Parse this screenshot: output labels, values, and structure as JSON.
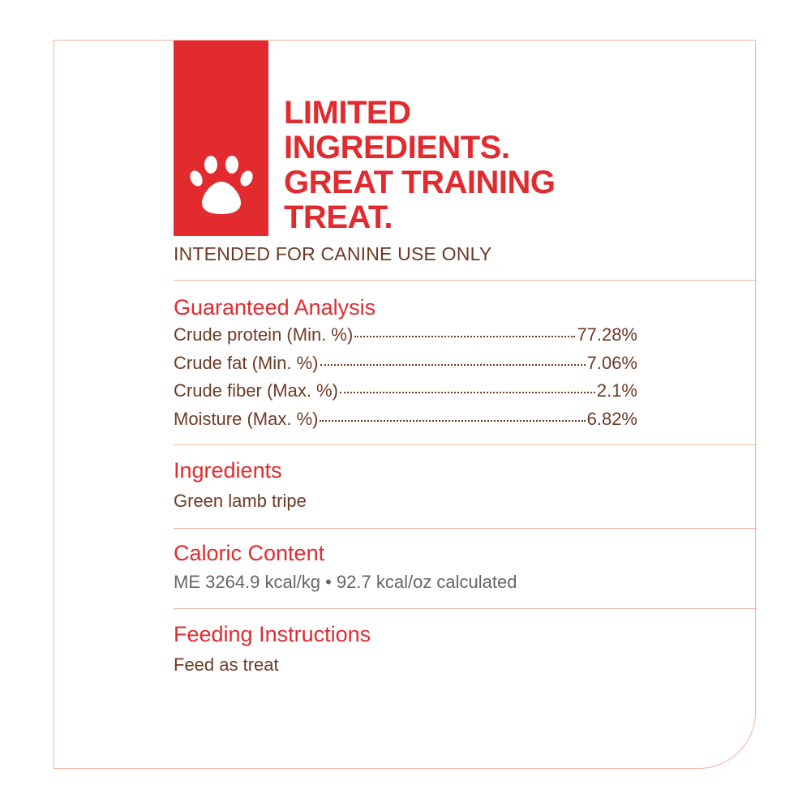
{
  "colors": {
    "accent": "#e12b2f",
    "text": "#6e3a24",
    "border": "#f4b49f",
    "muted": "#666666"
  },
  "badge": {
    "icon": "paw-icon"
  },
  "headline": [
    "LIMITED",
    "INGREDIENTS.",
    "GREAT TRAINING",
    "TREAT."
  ],
  "notice": "INTENDED FOR CANINE USE ONLY",
  "guaranteed_analysis": {
    "title": "Guaranteed Analysis",
    "rows": [
      {
        "label": "Crude protein (Min. %)",
        "value": "77.28%"
      },
      {
        "label": "Crude fat (Min. %)",
        "value": "7.06%"
      },
      {
        "label": "Crude fiber (Max. %)",
        "value": "2.1%"
      },
      {
        "label": "Moisture (Max. %)",
        "value": "6.82%"
      }
    ]
  },
  "ingredients": {
    "title": "Ingredients",
    "text": "Green lamb tripe"
  },
  "caloric": {
    "title": "Caloric Content",
    "text": "ME 3264.9 kcal/kg • 92.7 kcal/oz calculated"
  },
  "feeding": {
    "title": "Feeding Instructions",
    "text": "Feed as treat"
  }
}
